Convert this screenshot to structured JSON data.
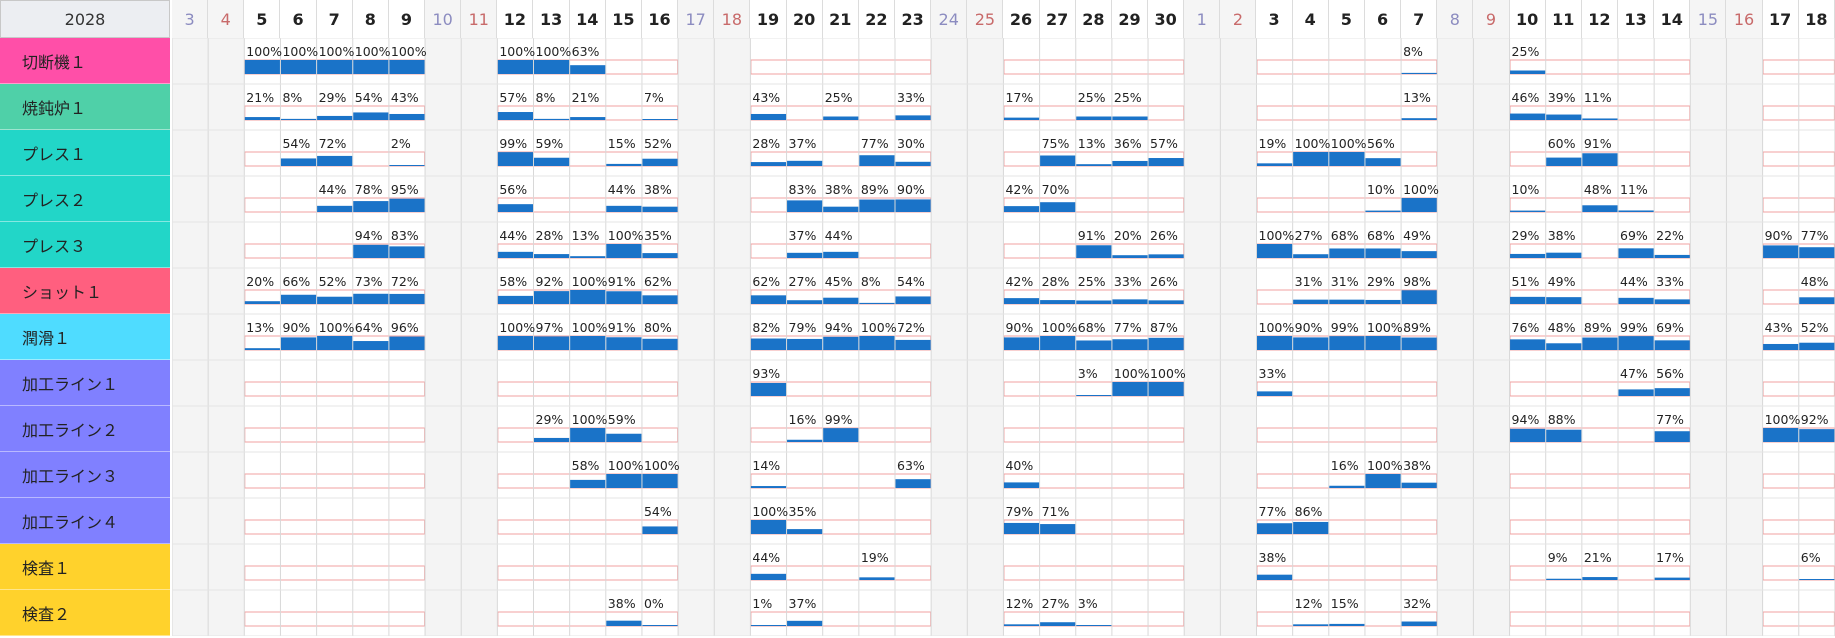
{
  "header": {
    "year": "2028"
  },
  "days": [
    {
      "label": "3",
      "kind": "sat"
    },
    {
      "label": "4",
      "kind": "sun"
    },
    {
      "label": "5",
      "kind": "wd"
    },
    {
      "label": "6",
      "kind": "wd"
    },
    {
      "label": "7",
      "kind": "wd"
    },
    {
      "label": "8",
      "kind": "wd"
    },
    {
      "label": "9",
      "kind": "wd"
    },
    {
      "label": "10",
      "kind": "sat"
    },
    {
      "label": "11",
      "kind": "sun"
    },
    {
      "label": "12",
      "kind": "wd"
    },
    {
      "label": "13",
      "kind": "wd"
    },
    {
      "label": "14",
      "kind": "wd"
    },
    {
      "label": "15",
      "kind": "wd"
    },
    {
      "label": "16",
      "kind": "wd"
    },
    {
      "label": "17",
      "kind": "sat"
    },
    {
      "label": "18",
      "kind": "sun"
    },
    {
      "label": "19",
      "kind": "wd"
    },
    {
      "label": "20",
      "kind": "wd"
    },
    {
      "label": "21",
      "kind": "wd"
    },
    {
      "label": "22",
      "kind": "wd"
    },
    {
      "label": "23",
      "kind": "wd"
    },
    {
      "label": "24",
      "kind": "sat"
    },
    {
      "label": "25",
      "kind": "sun"
    },
    {
      "label": "26",
      "kind": "wd"
    },
    {
      "label": "27",
      "kind": "wd"
    },
    {
      "label": "28",
      "kind": "wd"
    },
    {
      "label": "29",
      "kind": "wd"
    },
    {
      "label": "30",
      "kind": "wd"
    },
    {
      "label": "1",
      "kind": "sat"
    },
    {
      "label": "2",
      "kind": "sun"
    },
    {
      "label": "3",
      "kind": "wd"
    },
    {
      "label": "4",
      "kind": "wd"
    },
    {
      "label": "5",
      "kind": "wd"
    },
    {
      "label": "6",
      "kind": "wd"
    },
    {
      "label": "7",
      "kind": "wd"
    },
    {
      "label": "8",
      "kind": "sat"
    },
    {
      "label": "9",
      "kind": "sun"
    },
    {
      "label": "10",
      "kind": "wd"
    },
    {
      "label": "11",
      "kind": "wd"
    },
    {
      "label": "12",
      "kind": "wd"
    },
    {
      "label": "13",
      "kind": "wd"
    },
    {
      "label": "14",
      "kind": "wd"
    },
    {
      "label": "15",
      "kind": "sat"
    },
    {
      "label": "16",
      "kind": "sun"
    },
    {
      "label": "17",
      "kind": "wd"
    },
    {
      "label": "18",
      "kind": "wd"
    }
  ],
  "rows": [
    {
      "name": "切断機１",
      "color": "#ff4fa8",
      "vals": [
        null,
        null,
        100,
        100,
        100,
        100,
        100,
        null,
        null,
        100,
        100,
        63,
        null,
        null,
        null,
        null,
        null,
        null,
        null,
        null,
        null,
        null,
        null,
        null,
        null,
        null,
        null,
        null,
        null,
        null,
        null,
        null,
        null,
        null,
        8,
        null,
        null,
        25,
        null,
        null,
        null,
        null,
        null,
        null,
        null,
        null
      ]
    },
    {
      "name": "焼鈍炉１",
      "color": "#4fd0a8",
      "vals": [
        null,
        null,
        21,
        8,
        29,
        54,
        43,
        null,
        null,
        57,
        8,
        21,
        null,
        7,
        null,
        null,
        43,
        null,
        25,
        null,
        33,
        null,
        null,
        17,
        null,
        25,
        25,
        null,
        null,
        null,
        null,
        null,
        null,
        null,
        13,
        null,
        null,
        46,
        39,
        11,
        null,
        null,
        null,
        null,
        null,
        null
      ]
    },
    {
      "name": "プレス１",
      "color": "#22d6c8",
      "vals": [
        null,
        null,
        null,
        54,
        72,
        null,
        2,
        null,
        null,
        99,
        59,
        null,
        15,
        52,
        null,
        null,
        28,
        37,
        null,
        77,
        30,
        null,
        null,
        null,
        75,
        13,
        36,
        57,
        null,
        null,
        19,
        100,
        100,
        56,
        null,
        null,
        null,
        null,
        60,
        91,
        null,
        null,
        null,
        null,
        null,
        null
      ]
    },
    {
      "name": "プレス２",
      "color": "#22d6c8",
      "vals": [
        null,
        null,
        null,
        null,
        44,
        78,
        95,
        null,
        null,
        56,
        null,
        null,
        44,
        38,
        null,
        null,
        null,
        83,
        38,
        89,
        90,
        null,
        null,
        42,
        70,
        null,
        null,
        null,
        null,
        null,
        null,
        null,
        null,
        10,
        100,
        null,
        null,
        10,
        null,
        48,
        11,
        null,
        null,
        null,
        null,
        null
      ]
    },
    {
      "name": "プレス３",
      "color": "#22d6c8",
      "vals": [
        null,
        null,
        null,
        null,
        null,
        94,
        83,
        null,
        null,
        44,
        28,
        13,
        100,
        35,
        null,
        null,
        null,
        37,
        44,
        null,
        null,
        null,
        null,
        null,
        null,
        91,
        20,
        26,
        null,
        null,
        100,
        27,
        68,
        68,
        49,
        null,
        null,
        29,
        38,
        null,
        69,
        22,
        null,
        null,
        90,
        77
      ]
    },
    {
      "name": "ショット１",
      "color": "#ff5f7f",
      "vals": [
        null,
        null,
        20,
        66,
        52,
        73,
        72,
        null,
        null,
        58,
        92,
        100,
        91,
        62,
        null,
        null,
        62,
        27,
        45,
        8,
        54,
        null,
        null,
        42,
        28,
        25,
        33,
        26,
        null,
        null,
        null,
        31,
        31,
        29,
        98,
        null,
        null,
        51,
        49,
        null,
        44,
        33,
        null,
        null,
        null,
        48
      ]
    },
    {
      "name": "潤滑１",
      "color": "#4fdcff",
      "vals": [
        null,
        null,
        13,
        90,
        100,
        64,
        96,
        null,
        null,
        100,
        97,
        100,
        91,
        80,
        null,
        null,
        82,
        79,
        94,
        100,
        72,
        null,
        null,
        90,
        100,
        68,
        77,
        87,
        null,
        null,
        100,
        90,
        99,
        100,
        89,
        null,
        null,
        76,
        48,
        89,
        99,
        69,
        null,
        null,
        43,
        52
      ]
    },
    {
      "name": "加工ライン１",
      "color": "#8080ff",
      "vals": [
        null,
        null,
        null,
        null,
        null,
        null,
        null,
        null,
        null,
        null,
        null,
        null,
        null,
        null,
        null,
        null,
        93,
        null,
        null,
        null,
        null,
        null,
        null,
        null,
        null,
        3,
        100,
        100,
        null,
        null,
        33,
        null,
        null,
        null,
        null,
        null,
        null,
        null,
        null,
        null,
        47,
        56,
        null,
        null,
        null,
        null
      ]
    },
    {
      "name": "加工ライン２",
      "color": "#8080ff",
      "vals": [
        null,
        null,
        null,
        null,
        null,
        null,
        null,
        null,
        null,
        null,
        29,
        100,
        59,
        null,
        null,
        null,
        null,
        16,
        99,
        null,
        null,
        null,
        null,
        null,
        null,
        null,
        null,
        null,
        null,
        null,
        null,
        null,
        null,
        null,
        null,
        null,
        null,
        94,
        88,
        null,
        null,
        77,
        null,
        null,
        100,
        92
      ]
    },
    {
      "name": "加工ライン３",
      "color": "#8080ff",
      "vals": [
        null,
        null,
        null,
        null,
        null,
        null,
        null,
        null,
        null,
        null,
        null,
        58,
        100,
        100,
        null,
        null,
        14,
        null,
        null,
        null,
        63,
        null,
        null,
        40,
        null,
        null,
        null,
        null,
        null,
        null,
        null,
        null,
        16,
        100,
        38,
        null,
        null,
        null,
        null,
        null,
        null,
        null,
        null,
        null,
        null,
        null
      ]
    },
    {
      "name": "加工ライン４",
      "color": "#8080ff",
      "vals": [
        null,
        null,
        null,
        null,
        null,
        null,
        null,
        null,
        null,
        null,
        null,
        null,
        null,
        54,
        null,
        null,
        100,
        35,
        null,
        null,
        null,
        null,
        null,
        79,
        71,
        null,
        null,
        null,
        null,
        null,
        77,
        86,
        null,
        null,
        null,
        null,
        null,
        null,
        null,
        null,
        null,
        null,
        null,
        null,
        null,
        null
      ]
    },
    {
      "name": "検査１",
      "color": "#ffd22c",
      "vals": [
        null,
        null,
        null,
        null,
        null,
        null,
        null,
        null,
        null,
        null,
        null,
        null,
        null,
        null,
        null,
        null,
        44,
        null,
        null,
        19,
        null,
        null,
        null,
        null,
        null,
        null,
        null,
        null,
        null,
        null,
        38,
        null,
        null,
        null,
        null,
        null,
        null,
        null,
        9,
        21,
        null,
        17,
        null,
        null,
        null,
        6
      ]
    },
    {
      "name": "検査２",
      "color": "#ffd22c",
      "vals": [
        null,
        null,
        null,
        null,
        null,
        null,
        null,
        null,
        null,
        null,
        null,
        null,
        38,
        0,
        null,
        null,
        1,
        37,
        null,
        null,
        null,
        null,
        null,
        12,
        27,
        3,
        null,
        null,
        null,
        null,
        null,
        12,
        15,
        null,
        32,
        null,
        null,
        null,
        null,
        null,
        null,
        null,
        null,
        null,
        null,
        null
      ]
    }
  ],
  "colors": {
    "bar": "#1a73c8",
    "red_line": "#f0a0a0",
    "grid": "#d8d8d8",
    "weekend_bg": "#f4f4f4"
  }
}
